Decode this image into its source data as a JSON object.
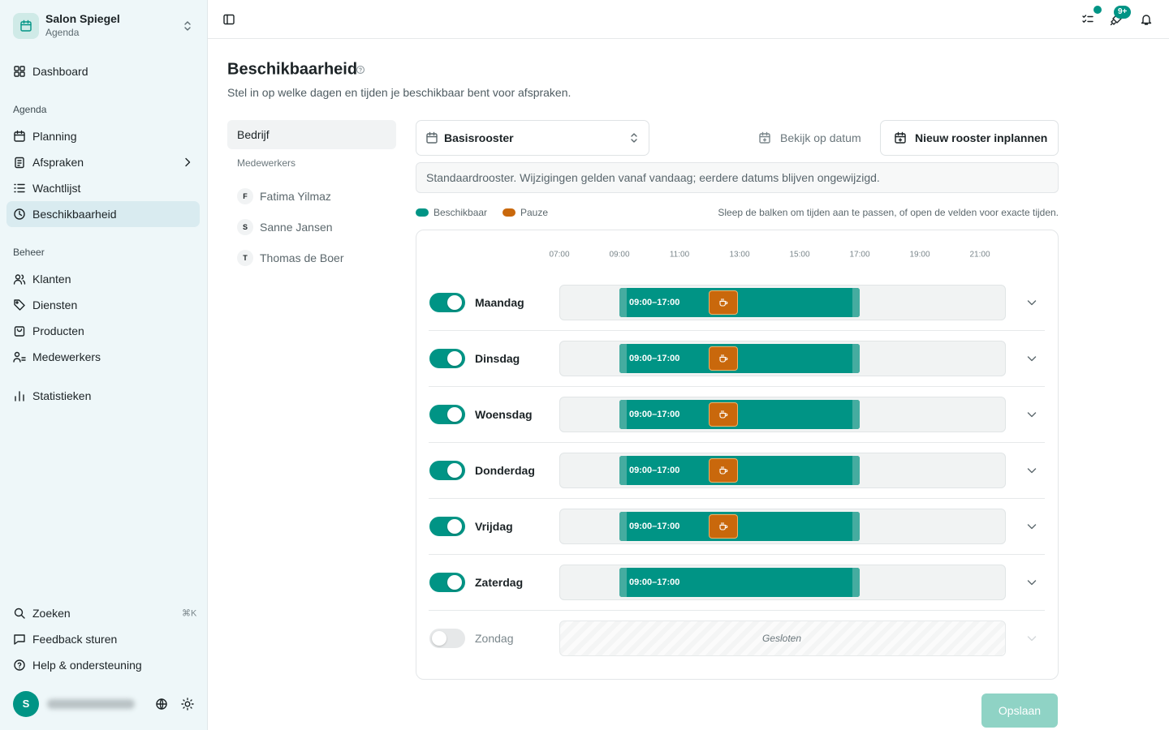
{
  "sidebar": {
    "brand": {
      "name": "Salon Spiegel",
      "subtitle": "Agenda"
    },
    "top_items": [
      {
        "label": "Dashboard"
      }
    ],
    "sections": [
      {
        "heading": "Agenda",
        "items": [
          {
            "label": "Planning"
          },
          {
            "label": "Afspraken",
            "expandable": true
          },
          {
            "label": "Wachtlijst"
          },
          {
            "label": "Beschikbaarheid",
            "active": true
          }
        ]
      },
      {
        "heading": "Beheer",
        "items": [
          {
            "label": "Klanten"
          },
          {
            "label": "Diensten"
          },
          {
            "label": "Producten"
          },
          {
            "label": "Medewerkers"
          }
        ]
      }
    ],
    "extra_items": [
      {
        "label": "Statistieken"
      }
    ],
    "footer_items": [
      {
        "label": "Zoeken",
        "shortcut": "⌘K"
      },
      {
        "label": "Feedback sturen"
      },
      {
        "label": "Help & ondersteuning"
      }
    ],
    "user": {
      "avatar": "S"
    }
  },
  "topbar": {
    "notification_badge": "9+"
  },
  "page": {
    "title": "Beschikbaarheid",
    "subtitle": "Stel in op welke dagen en tijden je beschikbaar bent voor afspraken."
  },
  "scope_panel": {
    "company": "Bedrijf",
    "staff_heading": "Medewerkers",
    "staff": [
      {
        "initial": "F",
        "name": "Fatima Yilmaz"
      },
      {
        "initial": "S",
        "name": "Sanne Jansen"
      },
      {
        "initial": "T",
        "name": "Thomas de Boer"
      }
    ]
  },
  "toolbar": {
    "schedule": "Basisrooster",
    "view_by_date": "Bekijk op datum",
    "new_schedule": "Nieuw rooster inplannen"
  },
  "notice": "Standaardrooster. Wijzigingen gelden vanaf vandaag; eerdere datums blijven ongewijzigd.",
  "legend": [
    {
      "label": "Beschikbaar",
      "color": "#009485"
    },
    {
      "label": "Pauze",
      "color": "#c9680c"
    }
  ],
  "hint": "Sleep de balken om tijden aan te passen, of open de velden voor exacte tijden.",
  "timeline": {
    "ticks": [
      "07:00",
      "09:00",
      "11:00",
      "13:00",
      "15:00",
      "17:00",
      "19:00",
      "21:00"
    ]
  },
  "days": [
    {
      "name": "Maandag",
      "enabled": true,
      "range": "09:00–17:00",
      "break": true
    },
    {
      "name": "Dinsdag",
      "enabled": true,
      "range": "09:00–17:00",
      "break": true
    },
    {
      "name": "Woensdag",
      "enabled": true,
      "range": "09:00–17:00",
      "break": true
    },
    {
      "name": "Donderdag",
      "enabled": true,
      "range": "09:00–17:00",
      "break": true
    },
    {
      "name": "Vrijdag",
      "enabled": true,
      "range": "09:00–17:00",
      "break": true
    },
    {
      "name": "Zaterdag",
      "enabled": true,
      "range": "09:00–17:00",
      "break": false
    },
    {
      "name": "Zondag",
      "enabled": false,
      "status": "Gesloten"
    }
  ],
  "save": "Opslaan"
}
